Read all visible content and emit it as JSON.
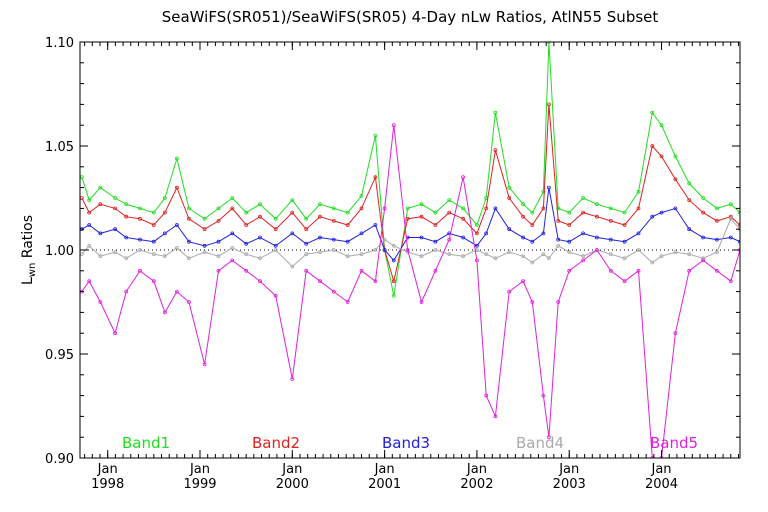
{
  "chart_data": {
    "type": "line",
    "title": "SeaWiFS(SR051)/SeaWiFS(SR05) 4-Day nLw Ratios, AtlN55 Subset",
    "ylabel_main": "L",
    "ylabel_sub": "wn",
    "ylabel_rest": " Ratios",
    "ylim": [
      0.9,
      1.1
    ],
    "xlim": [
      1997.7,
      2004.85
    ],
    "yticks": [
      "1.10",
      "1.05",
      "1.00",
      "0.95",
      "0.90"
    ],
    "ytick_values": [
      1.1,
      1.05,
      1.0,
      0.95,
      0.9
    ],
    "xticks": [
      {
        "month": "Jan",
        "year": "1998",
        "value": 1998.0
      },
      {
        "month": "Jan",
        "year": "1999",
        "value": 1999.0
      },
      {
        "month": "Jan",
        "year": "2000",
        "value": 2000.0
      },
      {
        "month": "Jan",
        "year": "2001",
        "value": 2001.0
      },
      {
        "month": "Jan",
        "year": "2002",
        "value": 2002.0
      },
      {
        "month": "Jan",
        "year": "2003",
        "value": 2003.0
      },
      {
        "month": "Jan",
        "year": "2004",
        "value": 2004.0
      }
    ],
    "reference_line": 1.0,
    "legend_placement": "bottom",
    "series": [
      {
        "name": "Band1",
        "color": "#22dd22",
        "x": [
          1997.72,
          1997.8,
          1997.92,
          1998.08,
          1998.2,
          1998.35,
          1998.5,
          1998.62,
          1998.75,
          1998.88,
          1999.05,
          1999.2,
          1999.35,
          1999.5,
          1999.65,
          1999.82,
          2000.0,
          2000.15,
          2000.3,
          2000.45,
          2000.6,
          2000.75,
          2000.9,
          2001.0,
          2001.1,
          2001.25,
          2001.4,
          2001.55,
          2001.7,
          2001.85,
          2002.0,
          2002.1,
          2002.2,
          2002.35,
          2002.5,
          2002.6,
          2002.72,
          2002.78,
          2002.88,
          2003.0,
          2003.15,
          2003.3,
          2003.45,
          2003.6,
          2003.75,
          2003.9,
          2004.0,
          2004.15,
          2004.3,
          2004.45,
          2004.6,
          2004.75,
          2004.85
        ],
        "y": [
          1.035,
          1.024,
          1.03,
          1.025,
          1.022,
          1.02,
          1.018,
          1.025,
          1.044,
          1.02,
          1.015,
          1.02,
          1.025,
          1.018,
          1.022,
          1.015,
          1.024,
          1.015,
          1.022,
          1.02,
          1.018,
          1.026,
          1.055,
          1.0,
          0.978,
          1.02,
          1.022,
          1.018,
          1.024,
          1.02,
          1.012,
          1.025,
          1.066,
          1.03,
          1.022,
          1.018,
          1.028,
          1.1,
          1.02,
          1.018,
          1.025,
          1.022,
          1.02,
          1.018,
          1.028,
          1.066,
          1.06,
          1.045,
          1.032,
          1.025,
          1.02,
          1.022,
          1.018
        ]
      },
      {
        "name": "Band2",
        "color": "#dd2222",
        "x": [
          1997.72,
          1997.8,
          1997.92,
          1998.08,
          1998.2,
          1998.35,
          1998.5,
          1998.62,
          1998.75,
          1998.88,
          1999.05,
          1999.2,
          1999.35,
          1999.5,
          1999.65,
          1999.82,
          2000.0,
          2000.15,
          2000.3,
          2000.45,
          2000.6,
          2000.75,
          2000.9,
          2001.0,
          2001.1,
          2001.25,
          2001.4,
          2001.55,
          2001.7,
          2001.85,
          2002.0,
          2002.1,
          2002.2,
          2002.35,
          2002.5,
          2002.6,
          2002.72,
          2002.78,
          2002.88,
          2003.0,
          2003.15,
          2003.3,
          2003.45,
          2003.6,
          2003.75,
          2003.9,
          2004.0,
          2004.15,
          2004.3,
          2004.45,
          2004.6,
          2004.75,
          2004.85
        ],
        "y": [
          1.025,
          1.018,
          1.022,
          1.02,
          1.016,
          1.015,
          1.012,
          1.018,
          1.03,
          1.015,
          1.01,
          1.014,
          1.02,
          1.012,
          1.016,
          1.01,
          1.018,
          1.01,
          1.016,
          1.014,
          1.012,
          1.02,
          1.035,
          1.0,
          0.985,
          1.015,
          1.016,
          1.012,
          1.018,
          1.015,
          1.008,
          1.02,
          1.048,
          1.025,
          1.016,
          1.012,
          1.02,
          1.07,
          1.014,
          1.012,
          1.018,
          1.016,
          1.014,
          1.012,
          1.02,
          1.05,
          1.045,
          1.034,
          1.024,
          1.018,
          1.014,
          1.016,
          1.012
        ]
      },
      {
        "name": "Band3",
        "color": "#2222dd",
        "x": [
          1997.72,
          1997.8,
          1997.92,
          1998.08,
          1998.2,
          1998.35,
          1998.5,
          1998.62,
          1998.75,
          1998.88,
          1999.05,
          1999.2,
          1999.35,
          1999.5,
          1999.65,
          1999.82,
          2000.0,
          2000.15,
          2000.3,
          2000.45,
          2000.6,
          2000.75,
          2000.9,
          2001.0,
          2001.1,
          2001.25,
          2001.4,
          2001.55,
          2001.7,
          2001.85,
          2002.0,
          2002.1,
          2002.2,
          2002.35,
          2002.5,
          2002.6,
          2002.72,
          2002.78,
          2002.88,
          2003.0,
          2003.15,
          2003.3,
          2003.45,
          2003.6,
          2003.75,
          2003.9,
          2004.0,
          2004.15,
          2004.3,
          2004.45,
          2004.6,
          2004.75,
          2004.85
        ],
        "y": [
          1.01,
          1.012,
          1.008,
          1.01,
          1.006,
          1.005,
          1.004,
          1.008,
          1.012,
          1.004,
          1.002,
          1.004,
          1.008,
          1.003,
          1.006,
          1.002,
          1.008,
          1.003,
          1.006,
          1.005,
          1.004,
          1.008,
          1.012,
          1.0,
          0.995,
          1.006,
          1.006,
          1.004,
          1.008,
          1.006,
          1.002,
          1.008,
          1.02,
          1.01,
          1.006,
          1.004,
          1.008,
          1.03,
          1.005,
          1.004,
          1.008,
          1.006,
          1.005,
          1.004,
          1.008,
          1.016,
          1.018,
          1.02,
          1.01,
          1.006,
          1.005,
          1.006,
          1.004
        ]
      },
      {
        "name": "Band4",
        "color": "#aaaaaa",
        "x": [
          1997.72,
          1997.8,
          1997.92,
          1998.08,
          1998.2,
          1998.35,
          1998.5,
          1998.62,
          1998.75,
          1998.88,
          1999.05,
          1999.2,
          1999.35,
          1999.5,
          1999.65,
          1999.82,
          2000.0,
          2000.15,
          2000.3,
          2000.45,
          2000.6,
          2000.75,
          2000.9,
          2001.0,
          2001.1,
          2001.25,
          2001.4,
          2001.55,
          2001.7,
          2001.85,
          2002.0,
          2002.1,
          2002.2,
          2002.35,
          2002.5,
          2002.6,
          2002.72,
          2002.78,
          2002.88,
          2003.0,
          2003.15,
          2003.3,
          2003.45,
          2003.6,
          2003.75,
          2003.9,
          2004.0,
          2004.15,
          2004.3,
          2004.45,
          2004.6,
          2004.75,
          2004.85
        ],
        "y": [
          0.998,
          1.002,
          0.997,
          0.999,
          0.996,
          1.0,
          0.998,
          0.997,
          1.001,
          0.996,
          0.999,
          0.997,
          1.001,
          0.998,
          0.996,
          1.0,
          0.992,
          0.998,
          0.999,
          1.0,
          0.997,
          0.998,
          1.0,
          1.005,
          1.002,
          0.999,
          0.997,
          1.0,
          0.998,
          0.997,
          1.0,
          0.998,
          0.996,
          0.999,
          0.997,
          0.994,
          0.998,
          0.996,
          1.002,
          0.999,
          0.997,
          1.0,
          0.998,
          0.996,
          1.0,
          0.994,
          0.997,
          0.999,
          0.998,
          0.996,
          0.999,
          1.015,
          1.01
        ]
      },
      {
        "name": "Band5",
        "color": "#dd22dd",
        "x": [
          1997.72,
          1997.8,
          1997.92,
          1998.08,
          1998.2,
          1998.35,
          1998.5,
          1998.62,
          1998.75,
          1998.88,
          1999.05,
          1999.2,
          1999.35,
          1999.5,
          1999.65,
          1999.82,
          2000.0,
          2000.15,
          2000.3,
          2000.45,
          2000.6,
          2000.75,
          2000.9,
          2001.0,
          2001.1,
          2001.25,
          2001.4,
          2001.55,
          2001.7,
          2001.85,
          2002.0,
          2002.1,
          2002.2,
          2002.35,
          2002.5,
          2002.6,
          2002.72,
          2002.78,
          2002.88,
          2003.0,
          2003.15,
          2003.3,
          2003.45,
          2003.6,
          2003.75,
          2003.9,
          2004.0,
          2004.15,
          2004.3,
          2004.45,
          2004.6,
          2004.75,
          2004.85
        ],
        "y": [
          0.98,
          0.985,
          0.975,
          0.96,
          0.98,
          0.99,
          0.985,
          0.97,
          0.98,
          0.975,
          0.945,
          0.99,
          0.995,
          0.99,
          0.985,
          0.978,
          0.938,
          0.99,
          0.985,
          0.98,
          0.975,
          0.99,
          0.985,
          1.02,
          1.06,
          1.0,
          0.975,
          0.99,
          1.005,
          1.035,
          0.995,
          0.93,
          0.92,
          0.98,
          0.985,
          0.975,
          0.93,
          0.91,
          0.975,
          0.99,
          0.995,
          1.0,
          0.99,
          0.985,
          0.99,
          0.9,
          0.9,
          0.96,
          0.99,
          0.995,
          0.99,
          0.985,
          1.0
        ]
      }
    ]
  }
}
